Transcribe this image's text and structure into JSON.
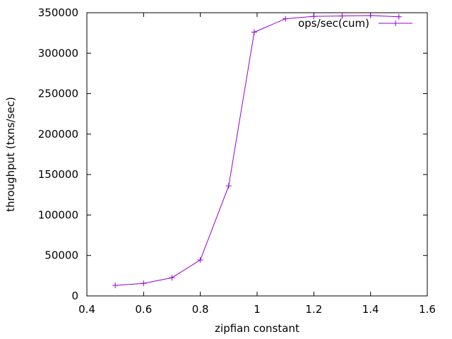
{
  "chart_data": {
    "type": "line",
    "xlabel": "zipfian constant",
    "ylabel": "throughput (txns/sec)",
    "xlim": [
      0.4,
      1.6
    ],
    "ylim": [
      0,
      350000
    ],
    "x_ticks": [
      "0.4",
      "0.6",
      "0.8",
      "1",
      "1.2",
      "1.4",
      "1.6"
    ],
    "x_tick_values": [
      0.4,
      0.6,
      0.8,
      1.0,
      1.2,
      1.4,
      1.6
    ],
    "y_ticks": [
      "0",
      "50000",
      "100000",
      "150000",
      "200000",
      "250000",
      "300000",
      "350000"
    ],
    "y_tick_values": [
      0,
      50000,
      100000,
      150000,
      200000,
      250000,
      300000,
      350000
    ],
    "grid": false,
    "legend_position": "top-right",
    "series": [
      {
        "name": "ops/sec(cum)",
        "color": "#9400d3",
        "marker": "plus",
        "x": [
          0.5,
          0.6,
          0.7,
          0.8,
          0.9,
          0.99,
          1.1,
          1.2,
          1.3,
          1.4,
          1.5
        ],
        "y": [
          13000,
          15500,
          22500,
          44500,
          136000,
          326000,
          342500,
          345500,
          346000,
          346500,
          345000
        ]
      }
    ]
  }
}
